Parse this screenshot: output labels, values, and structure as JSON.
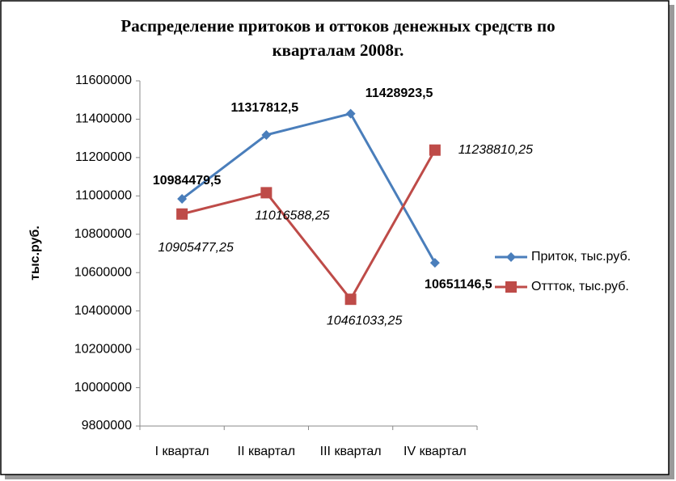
{
  "chart_data": {
    "type": "line",
    "title": "Распределение притоков и оттоков денежных средств по",
    "subtitle": "кварталам 2008г.",
    "y_label": "тыс.руб.",
    "categories": [
      "I квартал",
      "II квартал",
      "III квартал",
      "IV квартал"
    ],
    "series": [
      {
        "name": "Приток, тыс.руб.",
        "color": "#4a7ebb",
        "marker": "diamond",
        "values": [
          10984479.5,
          11317812.5,
          11428923.5,
          10651146.5
        ],
        "value_labels": [
          "10984479,5",
          "11317812,5",
          "11428923,5",
          "10651146,5"
        ]
      },
      {
        "name": "Оттток, тыс.руб.",
        "color": "#be4b48",
        "marker": "square",
        "values": [
          10905477.25,
          11016588.25,
          10461033.25,
          11238810.25
        ],
        "value_labels": [
          "10905477,25",
          "11016588,25",
          "10461033,25",
          "11238810,25"
        ]
      }
    ],
    "ylim": [
      9800000,
      11600000
    ],
    "yticks": [
      9800000,
      10000000,
      10200000,
      10400000,
      10600000,
      10800000,
      11000000,
      11200000,
      11400000,
      11600000
    ],
    "grid": false,
    "legend": "right"
  }
}
